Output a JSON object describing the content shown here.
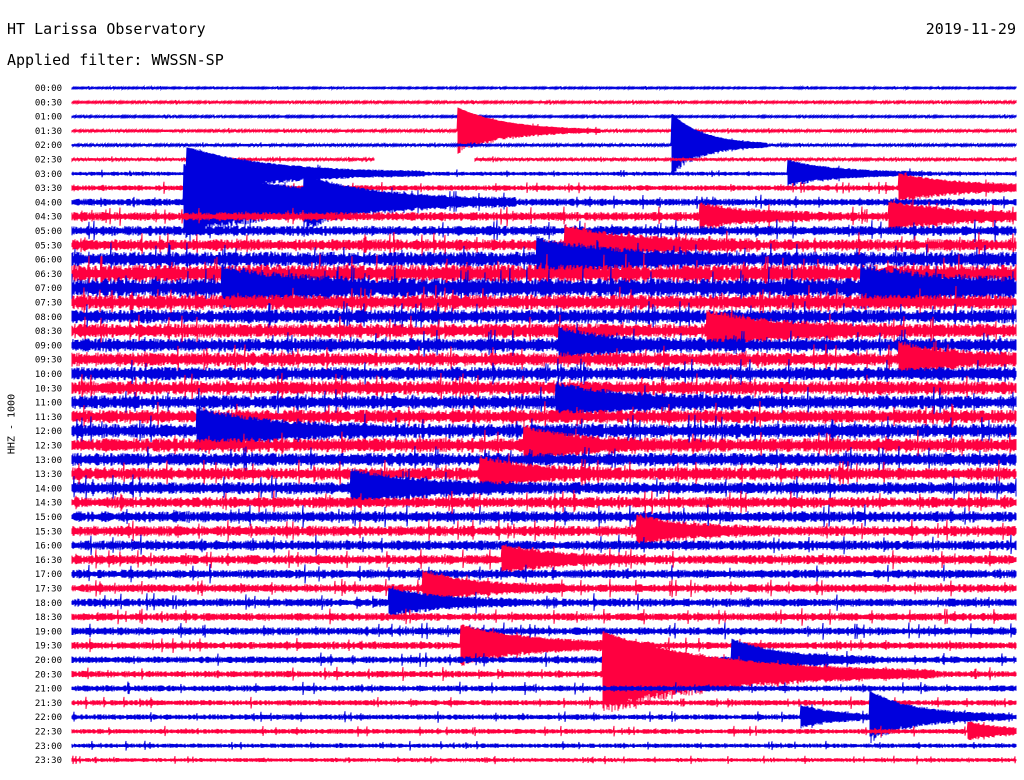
{
  "header": {
    "station": "HT Larissa Observatory",
    "date": "2019-11-29",
    "filter": "Applied filter: WWSSN-SP"
  },
  "chart_data": {
    "type": "line",
    "title": "HT Larissa Observatory",
    "subtitle": "Applied filter: WWSSN-SP",
    "ylabel": "HHZ - 1000",
    "xlabel": "",
    "grid": false,
    "legend": "none",
    "row_colors": [
      "#0000dd",
      "#ff0040"
    ],
    "tick_labels": [
      "00:00",
      "00:30",
      "01:00",
      "01:30",
      "02:00",
      "02:30",
      "03:00",
      "03:30",
      "04:00",
      "04:30",
      "05:00",
      "05:30",
      "06:00",
      "06:30",
      "07:00",
      "07:30",
      "08:00",
      "08:30",
      "09:00",
      "09:30",
      "10:00",
      "10:30",
      "11:00",
      "11:30",
      "12:00",
      "12:30",
      "13:00",
      "13:30",
      "14:00",
      "14:30",
      "15:00",
      "15:30",
      "16:00",
      "16:30",
      "17:00",
      "17:30",
      "18:00",
      "18:30",
      "19:00",
      "19:30",
      "20:00",
      "20:30",
      "21:00",
      "21:30",
      "22:00",
      "22:30",
      "23:00",
      "23:30"
    ],
    "noise_level": [
      0.6,
      0.8,
      0.7,
      0.9,
      0.9,
      1.0,
      1.4,
      2.0,
      2.6,
      3.2,
      3.6,
      4.2,
      5.5,
      6.5,
      7.0,
      5.5,
      5.0,
      5.2,
      5.0,
      5.0,
      5.0,
      5.0,
      5.0,
      5.0,
      5.2,
      5.0,
      4.8,
      4.6,
      4.4,
      4.0,
      4.0,
      3.8,
      3.6,
      3.4,
      3.2,
      3.0,
      3.0,
      2.8,
      2.8,
      2.6,
      2.5,
      2.4,
      2.2,
      2.0,
      2.0,
      1.8,
      1.6,
      1.4
    ],
    "events": [
      {
        "row": 3,
        "time": 12.3,
        "amp": 22,
        "dur": 1.5
      },
      {
        "row": 4,
        "time": 19.1,
        "amp": 30,
        "dur": 1.0
      },
      {
        "row": 6,
        "time": 3.7,
        "amp": 25,
        "dur": 2.5
      },
      {
        "row": 6,
        "time": 22.8,
        "amp": 12,
        "dur": 1.5
      },
      {
        "row": 7,
        "time": 26.3,
        "amp": 12,
        "dur": 2.0
      },
      {
        "row": 8,
        "time": 3.6,
        "amp": 35,
        "dur": 3.5
      },
      {
        "row": 8,
        "time": 7.4,
        "amp": 14,
        "dur": 1.5
      },
      {
        "row": 9,
        "time": 20.0,
        "amp": 10,
        "dur": 1.5
      },
      {
        "row": 9,
        "time": 26.0,
        "amp": 12,
        "dur": 2.0
      },
      {
        "row": 11,
        "time": 15.7,
        "amp": 15,
        "dur": 2.0
      },
      {
        "row": 12,
        "time": 14.8,
        "amp": 16,
        "dur": 2.0
      },
      {
        "row": 14,
        "time": 4.8,
        "amp": 15,
        "dur": 2.0
      },
      {
        "row": 14,
        "time": 25.1,
        "amp": 15,
        "dur": 2.5
      },
      {
        "row": 17,
        "time": 20.2,
        "amp": 15,
        "dur": 2.0
      },
      {
        "row": 18,
        "time": 15.5,
        "amp": 12,
        "dur": 1.5
      },
      {
        "row": 19,
        "time": 26.3,
        "amp": 12,
        "dur": 1.5
      },
      {
        "row": 22,
        "time": 15.4,
        "amp": 14,
        "dur": 2.0
      },
      {
        "row": 24,
        "time": 4.0,
        "amp": 18,
        "dur": 2.0
      },
      {
        "row": 25,
        "time": 14.4,
        "amp": 14,
        "dur": 1.5
      },
      {
        "row": 27,
        "time": 13.0,
        "amp": 12,
        "dur": 1.5
      },
      {
        "row": 28,
        "time": 8.9,
        "amp": 14,
        "dur": 2.0
      },
      {
        "row": 31,
        "time": 18.0,
        "amp": 12,
        "dur": 1.5
      },
      {
        "row": 33,
        "time": 13.7,
        "amp": 12,
        "dur": 1.5
      },
      {
        "row": 35,
        "time": 11.2,
        "amp": 14,
        "dur": 1.5
      },
      {
        "row": 36,
        "time": 10.1,
        "amp": 12,
        "dur": 1.5
      },
      {
        "row": 39,
        "time": 12.4,
        "amp": 18,
        "dur": 2.0
      },
      {
        "row": 40,
        "time": 21.0,
        "amp": 18,
        "dur": 1.5
      },
      {
        "row": 41,
        "time": 16.9,
        "amp": 40,
        "dur": 3.5
      },
      {
        "row": 44,
        "time": 25.4,
        "amp": 22,
        "dur": 1.5
      },
      {
        "row": 44,
        "time": 23.2,
        "amp": 10,
        "dur": 1.0
      },
      {
        "row": 45,
        "time": 28.5,
        "amp": 8,
        "dur": 1.0
      }
    ],
    "gaps": [
      {
        "row": 5,
        "from": 9.6,
        "to": 12.8
      }
    ]
  }
}
